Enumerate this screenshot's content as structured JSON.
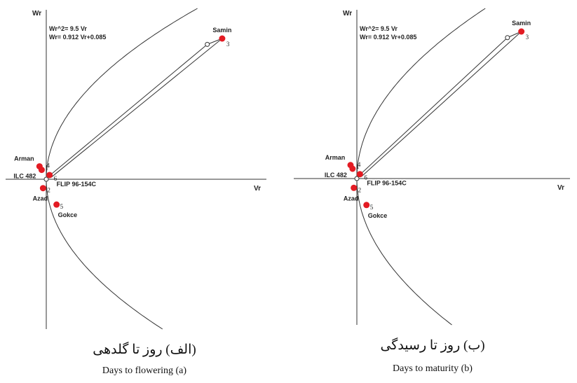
{
  "chart_data": [
    {
      "type": "scatter",
      "title": "",
      "xlabel": "Vr",
      "ylabel": "Wr",
      "equations": [
        "Wr^2= 9.5 Vr",
        "Wr= 0.912 Vr+0.085"
      ],
      "points": [
        {
          "id": "3",
          "name": "Samin",
          "x": 6.5,
          "y": 6.0
        },
        {
          "id": "1",
          "name": "Arman",
          "x": -0.25,
          "y": 0.55
        },
        {
          "id": "4",
          "name": "ILC 482",
          "x": -0.17,
          "y": 0.4
        },
        {
          "id": "6",
          "name": "FLIP 96-154C",
          "x": 0.12,
          "y": 0.18
        },
        {
          "id": "2",
          "name": "Azad",
          "x": -0.12,
          "y": -0.38
        },
        {
          "id": "5",
          "name": "Gokce",
          "x": 0.38,
          "y": -1.08
        }
      ],
      "caption_fa": "(الف) روز تا گلدهی",
      "caption_en": "Days to flowering (a)"
    },
    {
      "type": "scatter",
      "title": "",
      "xlabel": "Vr",
      "ylabel": "Wr",
      "equations": [
        "Wr^2= 9.5 Vr",
        "Wr= 0.912 Vr+0.085"
      ],
      "points": [
        {
          "id": "3",
          "name": "Samin",
          "x": 6.5,
          "y": 6.0
        },
        {
          "id": "1",
          "name": "Arman",
          "x": -0.25,
          "y": 0.55
        },
        {
          "id": "4",
          "name": "ILC 482",
          "x": -0.17,
          "y": 0.4
        },
        {
          "id": "6",
          "name": "FLIP 96-154C",
          "x": 0.12,
          "y": 0.18
        },
        {
          "id": "2",
          "name": "Azad",
          "x": -0.12,
          "y": -0.38
        },
        {
          "id": "5",
          "name": "Gokce",
          "x": 0.38,
          "y": -1.08
        }
      ],
      "caption_fa": "(ب) روز تا رسیدگی",
      "caption_en": "Days to maturity (b)"
    }
  ]
}
